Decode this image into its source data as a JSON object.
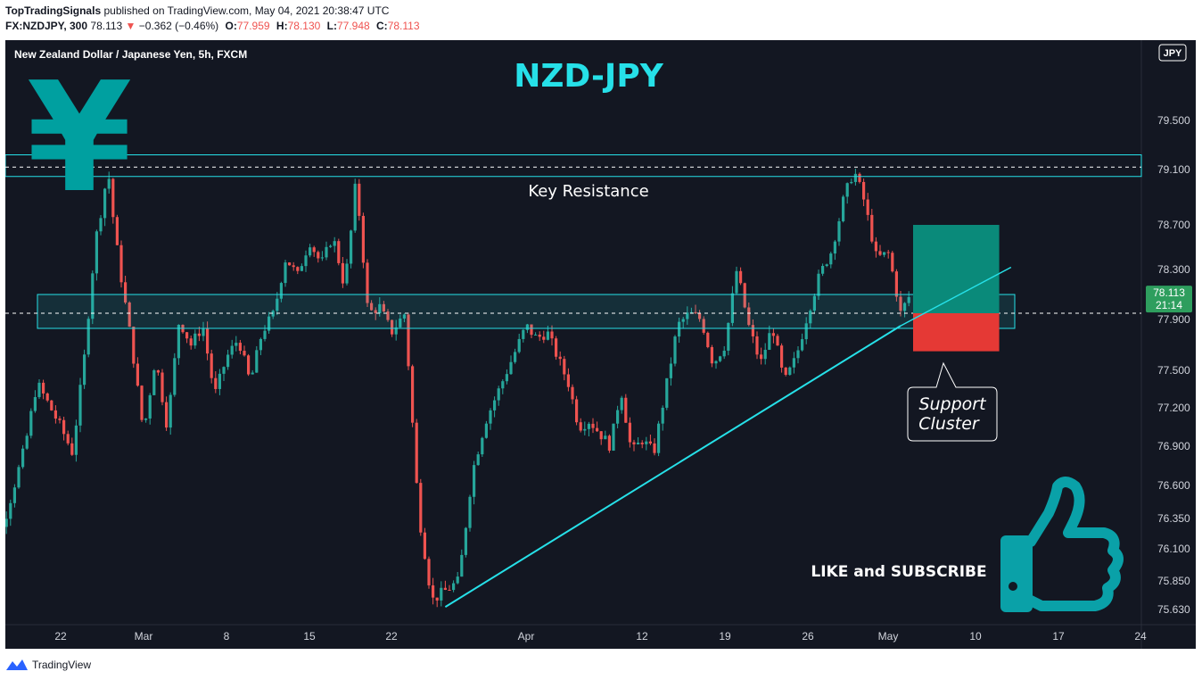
{
  "header": {
    "publisher": "TopTradingSignals",
    "published_text": "published on TradingView.com, May 04, 2021 20:38:47 UTC",
    "symbol": "FX:NZDJPY, 300",
    "last": "78.113",
    "change_arrow": "▼",
    "change": "−0.362 (−0.46%)",
    "o_label": "O:",
    "o": "77.959",
    "h_label": "H:",
    "h": "78.130",
    "l_label": "L:",
    "l": "77.948",
    "c_label": "C:",
    "c": "78.113"
  },
  "chart_title": "New Zealand Dollar / Japanese Yen, 5h, FXCM",
  "currency_badge": "JPY",
  "annotations": {
    "headline": "NZD-JPY",
    "key_resistance": "Key Resistance",
    "support_cluster_line1": "Support",
    "support_cluster_line2": "Cluster",
    "like_subscribe": "LIKE and SUBSCRIBE",
    "yen_symbol": "¥"
  },
  "price_label": {
    "value": "78.113",
    "countdown": "21:14"
  },
  "footer": {
    "brand": "TradingView"
  },
  "colors": {
    "background": "#131722",
    "up_candle": "#26a69a",
    "down_candle": "#ef5350",
    "accent_cyan": "#26e0e8",
    "yen_teal": "#00a0a0",
    "profit_zone": "#0a8a7a",
    "loss_zone": "#e53935",
    "price_label_bg": "#2e9e5e"
  },
  "chart_data": {
    "type": "candlestick",
    "symbol": "FX:NZDJPY",
    "timeframe": "5h",
    "yticks": [
      79.5,
      79.1,
      78.7,
      78.3,
      77.9,
      77.5,
      77.2,
      76.9,
      76.6,
      76.35,
      76.1,
      75.85,
      75.63
    ],
    "ytick_labels": [
      "79.500",
      "79.100",
      "78.700",
      "78.300",
      "77.900",
      "77.500",
      "77.200",
      "76.900",
      "76.600",
      "76.350",
      "76.100",
      "75.850",
      "75.630"
    ],
    "xticks": [
      "22",
      "Mar",
      "8",
      "15",
      "22",
      "Apr",
      "12",
      "19",
      "26",
      "May",
      "10",
      "17",
      "24"
    ],
    "xtick_dates": [
      "2021-02-22",
      "2021-03-01",
      "2021-03-08",
      "2021-03-15",
      "2021-03-22",
      "2021-04-01",
      "2021-04-12",
      "2021-04-19",
      "2021-04-26",
      "2021-05-03",
      "2021-05-10",
      "2021-05-17",
      "2021-05-24"
    ],
    "path": [
      [
        "2021-02-15",
        76.45
      ],
      [
        "2021-02-16",
        76.05
      ],
      [
        "2021-02-17",
        76.25
      ],
      [
        "2021-02-19",
        76.9
      ],
      [
        "2021-02-20",
        77.4
      ],
      [
        "2021-02-22",
        77.05
      ],
      [
        "2021-02-23",
        76.85
      ],
      [
        "2021-02-24",
        77.6
      ],
      [
        "2021-02-25",
        78.6
      ],
      [
        "2021-02-26",
        79.1
      ],
      [
        "2021-02-27",
        78.3
      ],
      [
        "2021-02-28",
        77.7
      ],
      [
        "2021-03-01",
        77.0
      ],
      [
        "2021-03-02",
        77.6
      ],
      [
        "2021-03-03",
        77.05
      ],
      [
        "2021-03-04",
        77.9
      ],
      [
        "2021-03-05",
        77.7
      ],
      [
        "2021-03-06",
        77.85
      ],
      [
        "2021-03-07",
        77.3
      ],
      [
        "2021-03-08",
        77.6
      ],
      [
        "2021-03-09",
        77.75
      ],
      [
        "2021-03-10",
        77.4
      ],
      [
        "2021-03-11",
        77.8
      ],
      [
        "2021-03-12",
        77.95
      ],
      [
        "2021-03-13",
        78.4
      ],
      [
        "2021-03-14",
        78.25
      ],
      [
        "2021-03-15",
        78.55
      ],
      [
        "2021-03-16",
        78.35
      ],
      [
        "2021-03-17",
        78.6
      ],
      [
        "2021-03-18",
        78.15
      ],
      [
        "2021-03-19",
        79.05
      ],
      [
        "2021-03-20",
        77.95
      ],
      [
        "2021-03-21",
        78.0
      ],
      [
        "2021-03-22",
        77.8
      ],
      [
        "2021-03-23",
        77.95
      ],
      [
        "2021-03-24",
        76.4
      ],
      [
        "2021-03-25",
        75.7
      ],
      [
        "2021-03-27",
        75.85
      ],
      [
        "2021-03-28",
        76.7
      ],
      [
        "2021-03-29",
        77.1
      ],
      [
        "2021-03-30",
        77.35
      ],
      [
        "2021-04-01",
        77.85
      ],
      [
        "2021-04-02",
        77.75
      ],
      [
        "2021-04-03",
        77.8
      ],
      [
        "2021-04-04",
        77.6
      ],
      [
        "2021-04-05",
        77.4
      ],
      [
        "2021-04-06",
        77.05
      ],
      [
        "2021-04-07",
        77.1
      ],
      [
        "2021-04-09",
        76.9
      ],
      [
        "2021-04-10",
        77.35
      ],
      [
        "2021-04-11",
        76.85
      ],
      [
        "2021-04-12",
        76.95
      ],
      [
        "2021-04-13",
        76.85
      ],
      [
        "2021-04-14",
        77.35
      ],
      [
        "2021-04-15",
        77.85
      ],
      [
        "2021-04-16",
        77.95
      ],
      [
        "2021-04-17",
        77.9
      ],
      [
        "2021-04-18",
        77.55
      ],
      [
        "2021-04-19",
        77.7
      ],
      [
        "2021-04-20",
        78.3
      ],
      [
        "2021-04-21",
        77.85
      ],
      [
        "2021-04-22",
        77.55
      ],
      [
        "2021-04-23",
        77.85
      ],
      [
        "2021-04-24",
        77.4
      ],
      [
        "2021-04-25",
        77.6
      ],
      [
        "2021-04-26",
        77.95
      ],
      [
        "2021-04-27",
        78.25
      ],
      [
        "2021-04-28",
        78.45
      ],
      [
        "2021-04-29",
        78.85
      ],
      [
        "2021-04-30",
        79.1
      ],
      [
        "2021-05-01",
        78.85
      ],
      [
        "2021-05-02",
        78.4
      ],
      [
        "2021-05-03",
        78.45
      ],
      [
        "2021-05-04",
        77.95
      ],
      [
        "2021-05-04T20",
        78.113
      ]
    ],
    "resistance_band": [
      79.05,
      79.22
    ],
    "resistance_level": 79.12,
    "support_band": [
      77.83,
      78.1
    ],
    "support_level": 77.95,
    "trendline": [
      [
        "2021-03-26",
        75.65
      ],
      [
        "2021-05-04",
        77.85
      ]
    ],
    "trendline_extension": [
      "2021-05-13",
      78.32
    ],
    "position_box": {
      "from": "2021-05-05",
      "to": "2021-05-12",
      "entry": 77.95,
      "target": 78.7,
      "stop": 77.65
    },
    "current_price": 78.113
  }
}
